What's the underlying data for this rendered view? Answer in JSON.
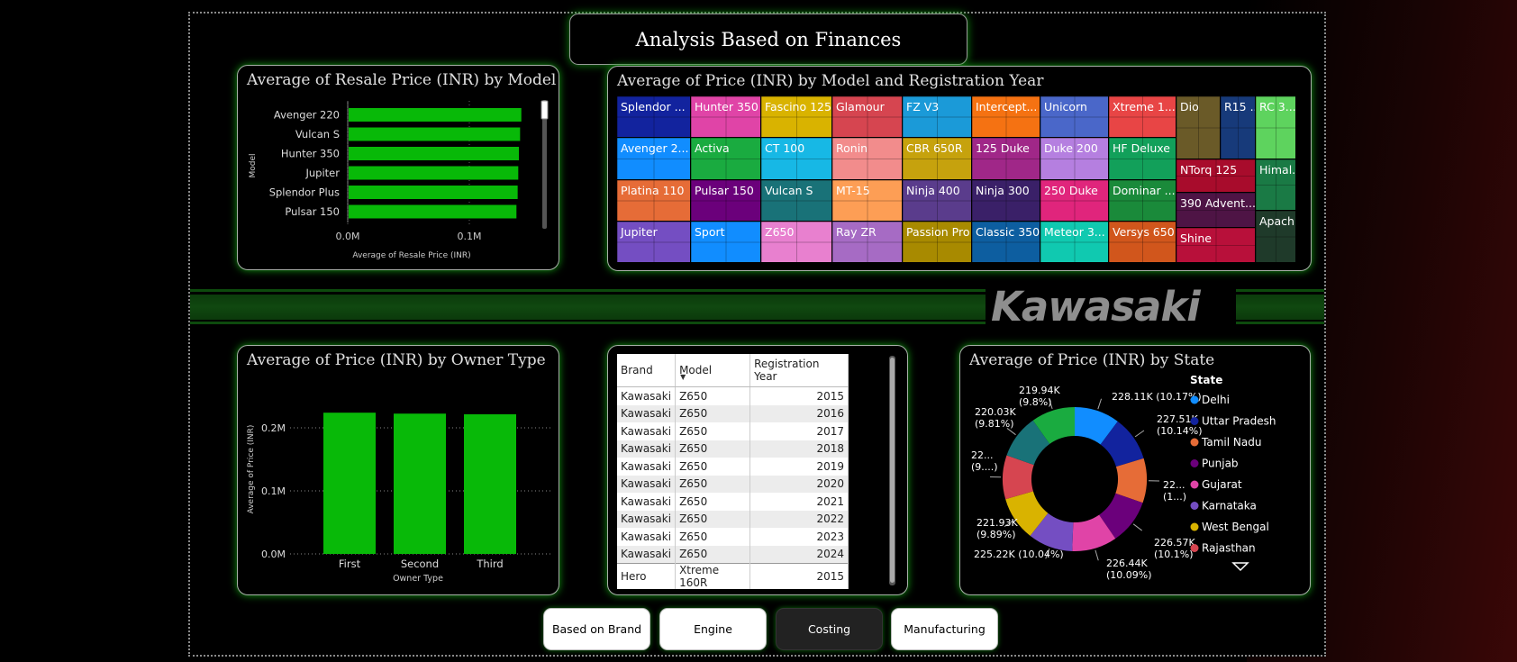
{
  "page_title": "Analysis Based on Finances",
  "brand_logo_text": "Kawasaki",
  "colors": {
    "green": "#08b908",
    "accent_glow": "#109a10",
    "stripe": "#0d440d"
  },
  "chart_data": [
    {
      "type": "bar",
      "orientation": "horizontal",
      "title": "Average of Resale Price (INR) by Model",
      "xlabel": "Average of Resale Price (INR)",
      "ylabel": "Model",
      "categories": [
        "Avenger 220",
        "Vulcan S",
        "Hunter 350",
        "Jupiter",
        "Splendor Plus",
        "Pulsar 150"
      ],
      "values": [
        142000,
        141000,
        140000,
        139500,
        139000,
        138000
      ],
      "xlim": [
        0,
        150000
      ],
      "x_ticks": [
        "0.0M",
        "0.1M"
      ],
      "x_tick_values": [
        0,
        100000
      ]
    },
    {
      "type": "treemap",
      "title": "Average of Price (INR) by Model and Registration Year",
      "categories": [
        "Splendor ...",
        "Avenger 2...",
        "Platina 110",
        "Jupiter",
        "Hunter 350",
        "Activa",
        "Pulsar 150",
        "Sport",
        "Fascino 125",
        "CT 100",
        "Vulcan S",
        "Z650",
        "Glamour",
        "Ronin",
        "MT-15",
        "Ray ZR",
        "FZ V3",
        "CBR 650R",
        "Ninja 400",
        "Passion Pro",
        "Intercept...",
        "125 Duke",
        "Ninja 300",
        "Classic 350",
        "Unicorn",
        "Duke 200",
        "250 Duke",
        "Meteor 3...",
        "Xtreme 1...",
        "HF Deluxe",
        "Dominar ...",
        "Versys 650",
        "Dio",
        "R15 ...",
        "RC 3...",
        "NTorq 125",
        "390 Advent...",
        "Shine",
        "Himal...",
        "Apach..."
      ]
    },
    {
      "type": "bar",
      "title": "Average of Price (INR) by Owner Type",
      "xlabel": "Owner Type",
      "ylabel": "Average of Price (INR)",
      "categories": [
        "First",
        "Second",
        "Third"
      ],
      "values": [
        224000,
        222500,
        221500
      ],
      "ylim": [
        0,
        220000
      ],
      "y_ticks": [
        "0.0M",
        "0.1M",
        "0.2M"
      ],
      "y_tick_values": [
        0,
        100000,
        200000
      ],
      "grid": true
    },
    {
      "type": "pie",
      "donut": true,
      "title": "Average of Price (INR) by State",
      "legend_title": "State",
      "legend_position": "right",
      "slices": [
        {
          "name": "Delhi",
          "value": 228110,
          "label": "228.11K (10.17%)",
          "color": "#118dff"
        },
        {
          "name": "Uttar Pradesh",
          "value": 227510,
          "label": "227.51K\n(10.14%)",
          "color": "#12239e"
        },
        {
          "name": "Tamil Nadu",
          "value": 224000,
          "label": "22...\n(1...)",
          "color": "#e66c37"
        },
        {
          "name": "Punjab",
          "value": 226570,
          "label": "226.57K\n(10.1%)",
          "color": "#6b007b"
        },
        {
          "name": "Gujarat",
          "value": 226440,
          "label": "226.44K\n(10.09%)",
          "color": "#e044a7"
        },
        {
          "name": "Karnataka",
          "value": 225220,
          "label": "225.22K (10.04%)",
          "color": "#744ec2"
        },
        {
          "name": "West Bengal",
          "value": 221930,
          "label": "221.93K\n(9.89%)",
          "color": "#d9b300"
        },
        {
          "name": "Rajasthan",
          "value": 221000,
          "label": "22...\n(9....)",
          "color": "#d64550"
        },
        {
          "name": "",
          "value": 220030,
          "label": "220.03K\n(9.81%)",
          "color": "#197278"
        },
        {
          "name": "",
          "value": 219940,
          "label": "219.94K\n(9.8%)",
          "color": "#1aab40"
        }
      ]
    }
  ],
  "table": {
    "columns": [
      "Brand",
      "Model",
      "Registration Year"
    ],
    "rows": [
      [
        "Kawasaki",
        "Z650",
        "2015"
      ],
      [
        "Kawasaki",
        "Z650",
        "2016"
      ],
      [
        "Kawasaki",
        "Z650",
        "2017"
      ],
      [
        "Kawasaki",
        "Z650",
        "2018"
      ],
      [
        "Kawasaki",
        "Z650",
        "2019"
      ],
      [
        "Kawasaki",
        "Z650",
        "2020"
      ],
      [
        "Kawasaki",
        "Z650",
        "2021"
      ],
      [
        "Kawasaki",
        "Z650",
        "2022"
      ],
      [
        "Kawasaki",
        "Z650",
        "2023"
      ],
      [
        "Kawasaki",
        "Z650",
        "2024"
      ],
      [
        "Hero",
        "Xtreme 160R",
        "2015"
      ]
    ]
  },
  "nav_buttons": [
    {
      "label": "Based on Brand",
      "active": false
    },
    {
      "label": "Engine",
      "active": false
    },
    {
      "label": "Costing",
      "active": true
    },
    {
      "label": "Manufacturing",
      "active": false
    }
  ]
}
